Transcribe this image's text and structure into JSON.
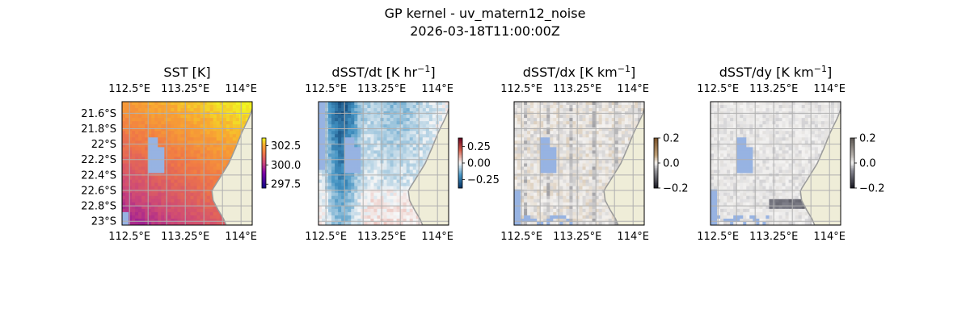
{
  "figure": {
    "title_line1": "GP kernel - uv_matern12_noise",
    "title_line2": "2026-03-18T11:00:00Z"
  },
  "colors": {
    "land": "#efedd8",
    "coast": "#9a9a9a",
    "nan_fill": "#97b3e2",
    "grid": "#b0b0b0"
  },
  "chart_data": [
    {
      "type": "heatmap",
      "title": "SST [K]",
      "title_sup": "",
      "title_suffix": "",
      "colormap": "plasma-like",
      "colorbar": {
        "ticks": [
          "302.5",
          "300.0",
          "297.5"
        ],
        "tick_values": [
          302.5,
          300.0,
          297.5
        ],
        "range": [
          297.0,
          303.5
        ]
      },
      "xlim": [
        112.4,
        114.15
      ],
      "ylim": [
        -23.05,
        -21.45
      ],
      "xticks_top": [
        "112.5°E",
        "113.25°E",
        "114°E"
      ],
      "xticks_bottom": [
        "112.5°E",
        "113.25°E",
        "114°E"
      ],
      "xtick_values": [
        112.5,
        113.25,
        114.0
      ],
      "yticks": [
        "21.6°S",
        "21.8°S",
        "22°S",
        "22.2°S",
        "22.4°S",
        "22.6°S",
        "22.8°S",
        "23°S"
      ],
      "ytick_values": [
        -21.6,
        -21.8,
        -22.0,
        -22.2,
        -22.4,
        -22.6,
        -22.8,
        -23.0
      ],
      "grid": true
    },
    {
      "type": "heatmap",
      "title": "dSST/dt [K hr",
      "title_sup": "−1",
      "title_suffix": "]",
      "colormap": "RdBu_r",
      "colorbar": {
        "ticks": [
          "0.25",
          "0.00",
          "−0.25"
        ],
        "tick_values": [
          0.25,
          0.0,
          -0.25
        ],
        "range": [
          -0.38,
          0.38
        ]
      },
      "xlim": [
        112.4,
        114.15
      ],
      "ylim": [
        -23.05,
        -21.45
      ],
      "xticks_top": [
        "112.5°E",
        "113.25°E",
        "114°E"
      ],
      "xticks_bottom": [
        "112.5°E",
        "113.25°E",
        "114°E"
      ],
      "xtick_values": [
        112.5,
        113.25,
        114.0
      ],
      "grid": true
    },
    {
      "type": "heatmap",
      "title": "dSST/dx [K km",
      "title_sup": "−1",
      "title_suffix": "]",
      "colormap": "BrBG-like",
      "colorbar": {
        "ticks": [
          "0.2",
          "0.0",
          "−0.2"
        ],
        "tick_values": [
          0.2,
          0.0,
          -0.2
        ],
        "range": [
          -0.2,
          0.2
        ]
      },
      "xlim": [
        112.4,
        114.15
      ],
      "ylim": [
        -23.05,
        -21.45
      ],
      "xticks_top": [
        "112.5°E",
        "113.25°E",
        "114°E"
      ],
      "xticks_bottom": [
        "112.5°E",
        "113.25°E",
        "114°E"
      ],
      "xtick_values": [
        112.5,
        113.25,
        114.0
      ],
      "grid": true
    },
    {
      "type": "heatmap",
      "title": "dSST/dy [K km",
      "title_sup": "−1",
      "title_suffix": "]",
      "colormap": "grey-diverging",
      "colorbar": {
        "ticks": [
          "0.2",
          "0.0",
          "−0.2"
        ],
        "tick_values": [
          0.2,
          0.0,
          -0.2
        ],
        "range": [
          -0.2,
          0.2
        ]
      },
      "xlim": [
        112.4,
        114.15
      ],
      "ylim": [
        -23.05,
        -21.45
      ],
      "xticks_top": [
        "112.5°E",
        "113.25°E",
        "114°E"
      ],
      "xticks_bottom": [
        "112.5°E",
        "113.25°E",
        "114°E"
      ],
      "xtick_values": [
        112.5,
        113.25,
        114.0
      ],
      "grid": true
    }
  ]
}
